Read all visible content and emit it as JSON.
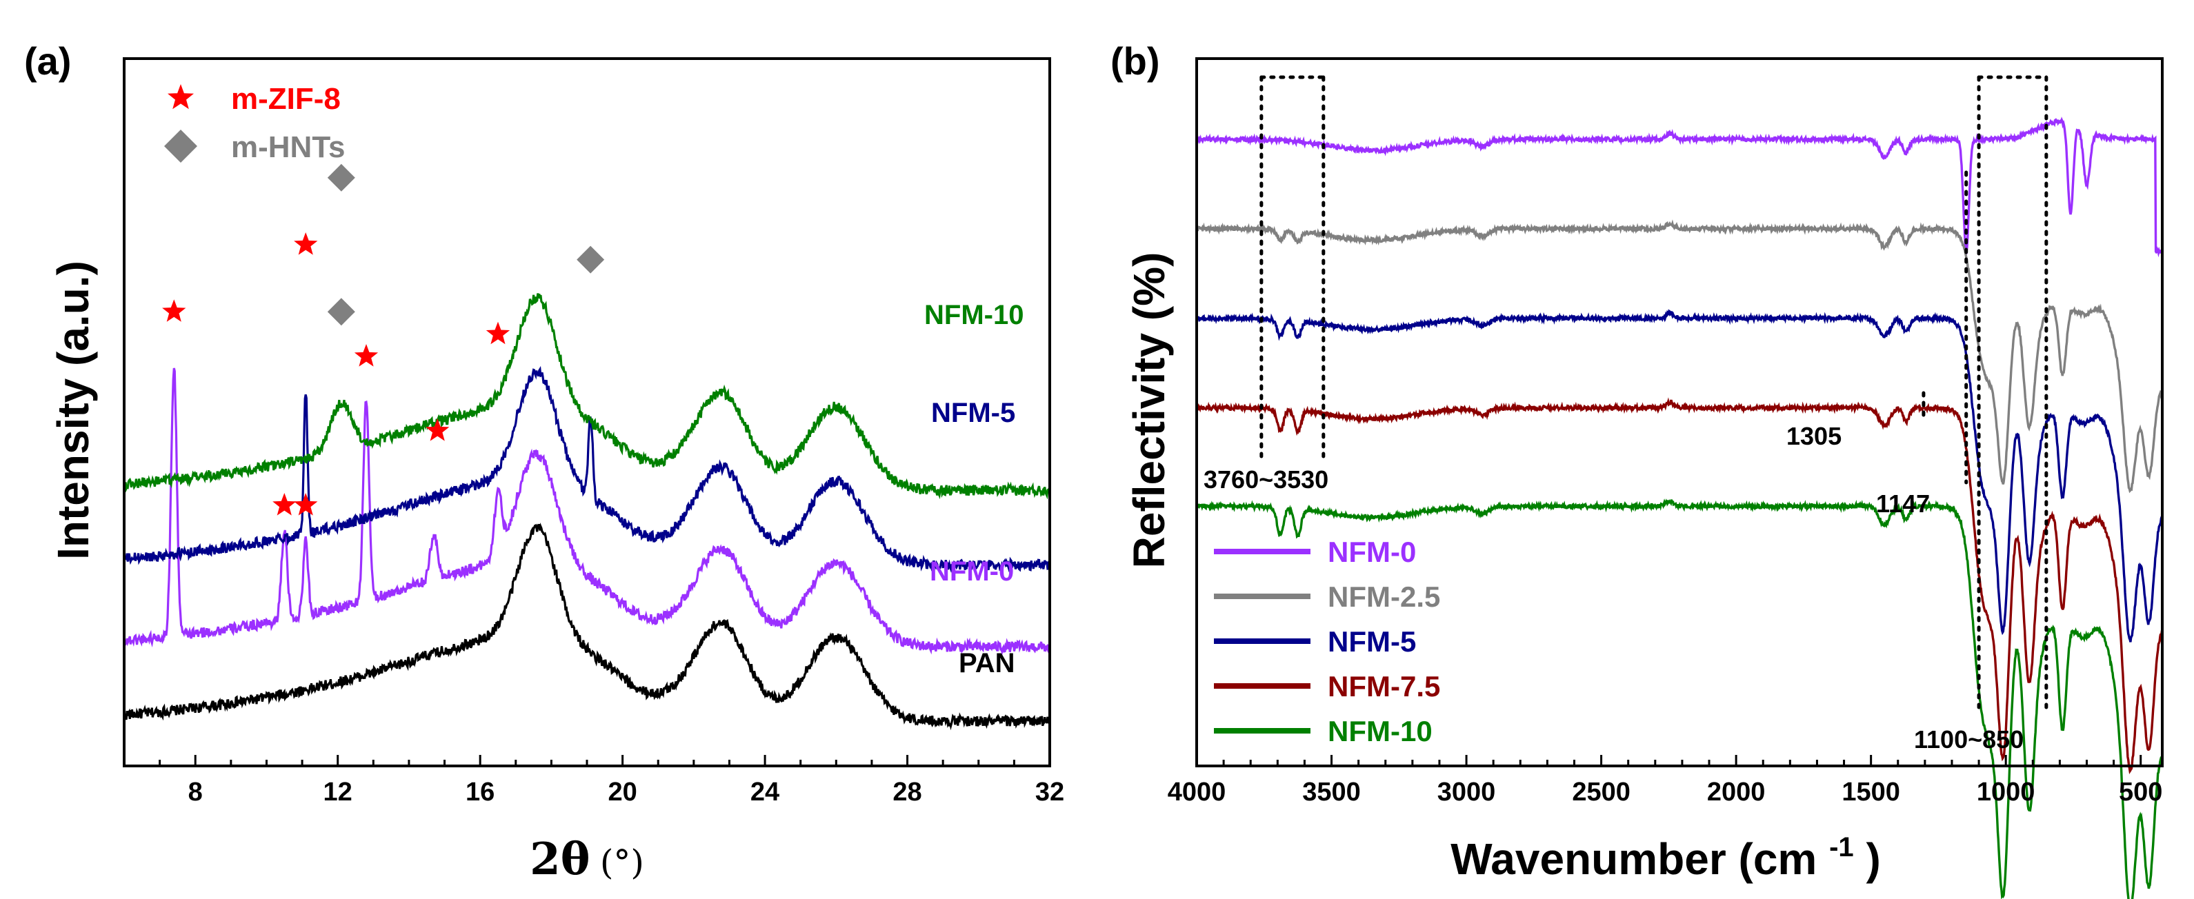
{
  "chart_data": [
    {
      "panel": "(a)",
      "type": "line",
      "title": "",
      "xlabel_main": "2θ",
      "xlabel_unit": "(°)",
      "ylabel": "Intensity (a.u.)",
      "xlim": [
        6,
        32
      ],
      "xticks": [
        8,
        12,
        16,
        20,
        24,
        28,
        32
      ],
      "yticks_shown": false,
      "grid": false,
      "legend": {
        "position": "top-left",
        "entries": [
          {
            "label": "m-ZIF-8",
            "marker": "star",
            "color": "#ff0000"
          },
          {
            "label": "m-HNTs",
            "marker": "diamond",
            "color": "#808080"
          }
        ]
      },
      "series": [
        {
          "name": "PAN",
          "color": "#000000",
          "offset": 0.0,
          "peaks": []
        },
        {
          "name": "NFM-0",
          "color": "#9b30ff",
          "offset": 0.5,
          "peaks": [
            [
              7.4,
              1.8,
              0.08
            ],
            [
              10.5,
              0.6,
              0.08
            ],
            [
              11.1,
              0.5,
              0.07
            ],
            [
              12.8,
              1.35,
              0.08
            ],
            [
              14.7,
              0.3,
              0.1
            ],
            [
              16.5,
              0.4,
              0.1
            ]
          ]
        },
        {
          "name": "NFM-5",
          "color": "#00008b",
          "offset": 1.05,
          "peaks": [
            [
              11.1,
              0.95,
              0.05
            ],
            [
              19.1,
              0.55,
              0.06
            ]
          ]
        },
        {
          "name": "NFM-10",
          "color": "#008000",
          "offset": 1.55,
          "peaks": [
            [
              12.1,
              0.32,
              0.3
            ]
          ]
        }
      ],
      "markers": [
        {
          "x": 7.4,
          "y": 2.75,
          "type": "star"
        },
        {
          "x": 11.1,
          "y": 3.2,
          "type": "star"
        },
        {
          "x": 10.5,
          "y": 1.45,
          "type": "star"
        },
        {
          "x": 11.1,
          "y": 1.45,
          "type": "star"
        },
        {
          "x": 12.8,
          "y": 2.45,
          "type": "star"
        },
        {
          "x": 14.8,
          "y": 1.95,
          "type": "star"
        },
        {
          "x": 16.5,
          "y": 2.6,
          "type": "star"
        },
        {
          "x": 12.1,
          "y": 3.65,
          "type": "diamond"
        },
        {
          "x": 12.1,
          "y": 2.75,
          "type": "diamond"
        },
        {
          "x": 19.1,
          "y": 3.1,
          "type": "diamond"
        }
      ]
    },
    {
      "panel": "(b)",
      "type": "line",
      "title": "",
      "xlabel": "Wavenumber (cm",
      "xlabel_sup": "-1",
      "xlabel_close": ")",
      "ylabel": "Reflectivity (%)",
      "xlim": [
        4000,
        420
      ],
      "xticks": [
        4000,
        3500,
        3000,
        2500,
        2000,
        1500,
        1000,
        500
      ],
      "yticks_shown": false,
      "grid": false,
      "legend": {
        "position": "bottom-left",
        "entries": [
          {
            "label": "NFM-0",
            "color": "#9b30ff"
          },
          {
            "label": "NFM-2.5",
            "color": "#808080"
          },
          {
            "label": "NFM-5",
            "color": "#00008b"
          },
          {
            "label": "NFM-7.5",
            "color": "#8b0000"
          },
          {
            "label": "NFM-10",
            "color": "#008000"
          }
        ]
      },
      "series": [
        {
          "name": "NFM-0",
          "color": "#9b30ff",
          "baseline": 100,
          "oh": 0,
          "bands": 0.25
        },
        {
          "name": "NFM-2.5",
          "color": "#808080",
          "baseline": 80,
          "oh": 0.4,
          "bands": 0.65
        },
        {
          "name": "NFM-5",
          "color": "#00008b",
          "baseline": 60,
          "oh": 0.6,
          "bands": 0.8
        },
        {
          "name": "NFM-7.5",
          "color": "#8b0000",
          "baseline": 40,
          "oh": 0.8,
          "bands": 0.9
        },
        {
          "name": "NFM-10",
          "color": "#008000",
          "baseline": 18,
          "oh": 1.0,
          "bands": 1.0
        }
      ],
      "annotations": [
        {
          "label": "3760~3530",
          "x_range": [
            3760,
            3530
          ]
        },
        {
          "label": "1305",
          "x": 1305
        },
        {
          "label": "1147",
          "x": 1147
        },
        {
          "label": "1100~850",
          "x_range": [
            1100,
            850
          ]
        }
      ]
    }
  ]
}
